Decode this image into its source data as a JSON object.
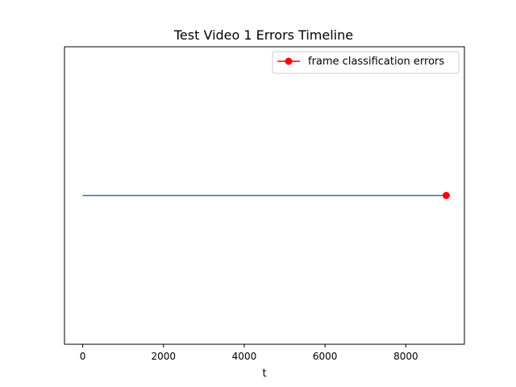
{
  "chart_data": {
    "type": "line",
    "title": "Test Video 1 Errors Timeline",
    "xlabel": "t",
    "ylabel": "",
    "xlim": [
      -450,
      9450
    ],
    "ylim": [
      -1,
      1
    ],
    "x_ticks": [
      0,
      2000,
      4000,
      6000,
      8000
    ],
    "x_tick_labels": [
      "0",
      "2000",
      "4000",
      "6000",
      "8000"
    ],
    "y_axis_visible": false,
    "grid": false,
    "legend_position": "top-right",
    "series": [
      {
        "name": "",
        "color": "#1f77b4",
        "marker": "none",
        "x": [
          0,
          9000
        ],
        "y": [
          0,
          0
        ]
      },
      {
        "name": "frame classification errors",
        "color": "#ff0000",
        "marker": "circle",
        "x": [
          9000
        ],
        "y": [
          0
        ]
      }
    ]
  }
}
